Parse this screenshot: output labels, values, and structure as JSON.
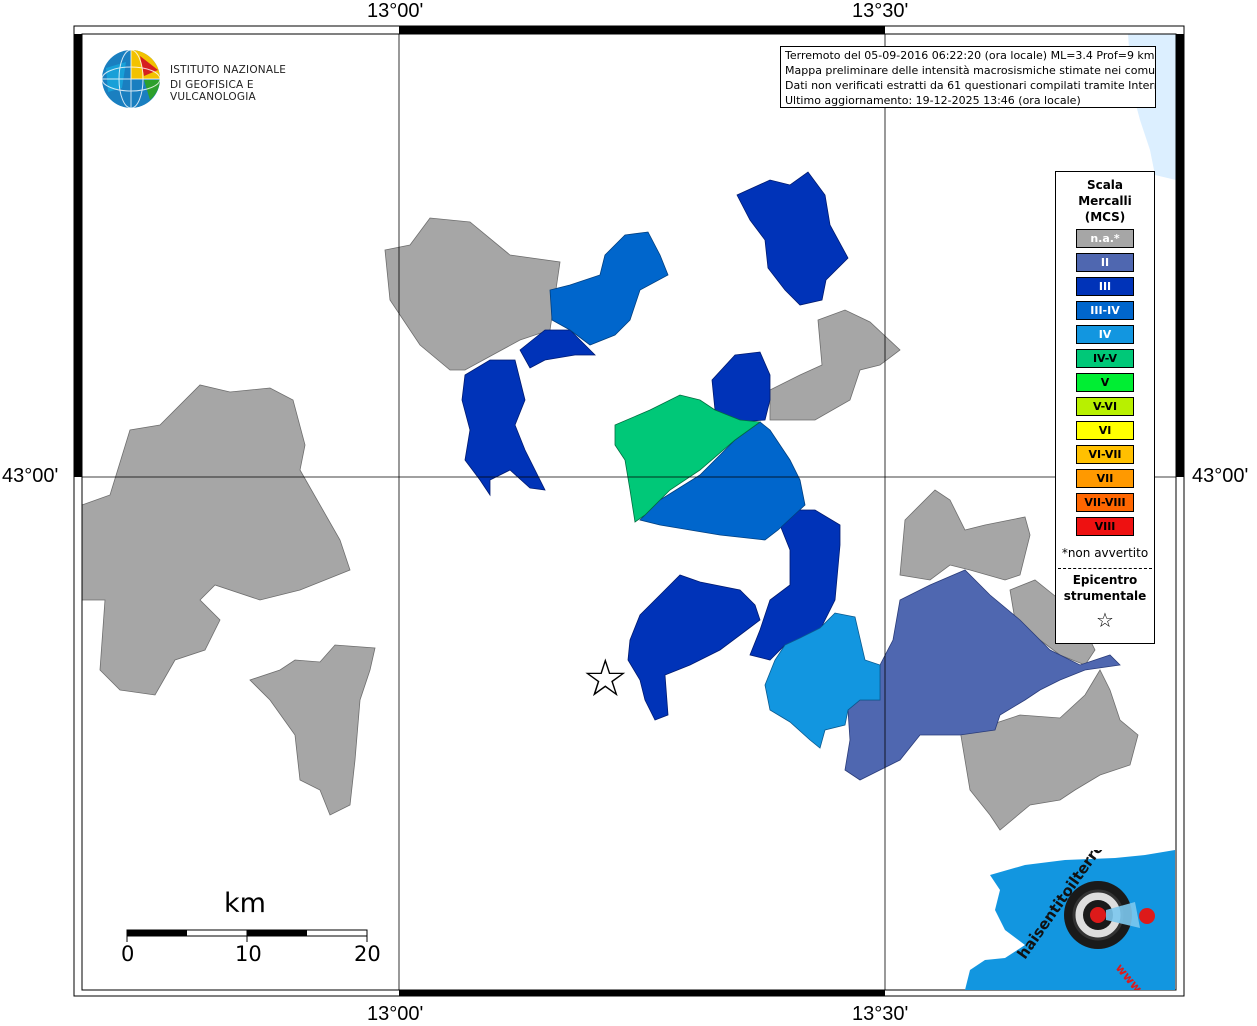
{
  "coords": {
    "lon_left": "13°00'",
    "lon_right": "13°30'",
    "lat": "43°00'"
  },
  "info": {
    "line1": "Terremoto del 05-09-2016 06:22:20 (ora locale) ML=3.4 Prof=9 km",
    "line2": "Mappa preliminare delle intensità macrosismiche stimate nei comuni",
    "line3": "Dati non verificati estratti da 61 questionari compilati tramite Internet.",
    "line4": "Ultimo aggiornamento: 19-12-2025 13:46 (ora locale)"
  },
  "logo": {
    "line1": "ISTITUTO NAZIONALE",
    "line2": "DI GEOFISICA E VULCANOLOGIA"
  },
  "legend": {
    "title1": "Scala",
    "title2": "Mercalli",
    "title3": "(MCS)",
    "items": [
      {
        "label": "n.a.*",
        "color": "#a6a6a6",
        "text": "#ffffff"
      },
      {
        "label": "II",
        "color": "#4f67b0",
        "text": "#ffffff"
      },
      {
        "label": "III",
        "color": "#0033b8",
        "text": "#ffffff"
      },
      {
        "label": "III-IV",
        "color": "#0066cc",
        "text": "#ffffff"
      },
      {
        "label": "IV",
        "color": "#1296e0",
        "text": "#ffffff"
      },
      {
        "label": "IV-V",
        "color": "#00c878",
        "text": "#000000"
      },
      {
        "label": "V",
        "color": "#00ee33",
        "text": "#000000"
      },
      {
        "label": "V-VI",
        "color": "#b8f000",
        "text": "#000000"
      },
      {
        "label": "VI",
        "color": "#ffff00",
        "text": "#000000"
      },
      {
        "label": "VI-VII",
        "color": "#ffc000",
        "text": "#000000"
      },
      {
        "label": "VII",
        "color": "#ff9900",
        "text": "#000000"
      },
      {
        "label": "VII-VIII",
        "color": "#ff6600",
        "text": "#000000"
      },
      {
        "label": "VIII",
        "color": "#ee1111",
        "text": "#000000"
      }
    ],
    "note": "*non avvertito",
    "epi1": "Epicentro",
    "epi2": "strumentale",
    "star": "☆"
  },
  "scale": {
    "unit": "km",
    "ticks": [
      "0",
      "10",
      "20"
    ]
  },
  "badge": {
    "text": "haisentitoilterremoto.it",
    "url": "www."
  },
  "epicenter": {
    "symbol": "☆"
  }
}
